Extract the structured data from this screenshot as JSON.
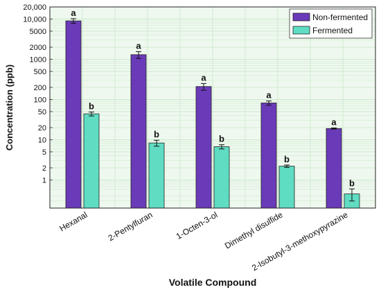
{
  "chart_data": {
    "type": "bar",
    "xlabel": "Volatile Compound",
    "ylabel": "Concentration (ppb)",
    "yscale": "log",
    "ylim": [
      0.2,
      20000
    ],
    "y_ticks": [
      {
        "value": 1,
        "label": "1"
      },
      {
        "value": 2,
        "label": "2"
      },
      {
        "value": 5,
        "label": "5"
      },
      {
        "value": 10,
        "label": "10"
      },
      {
        "value": 20,
        "label": "20"
      },
      {
        "value": 50,
        "label": "50"
      },
      {
        "value": 100,
        "label": "100"
      },
      {
        "value": 200,
        "label": "200"
      },
      {
        "value": 500,
        "label": "500"
      },
      {
        "value": 1000,
        "label": "1000"
      },
      {
        "value": 2000,
        "label": "2000"
      },
      {
        "value": 5000,
        "label": "5000"
      },
      {
        "value": 10000,
        "label": "10,000"
      },
      {
        "value": 20000,
        "label": "20,000"
      }
    ],
    "grid": true,
    "legend_position": "top-right",
    "categories": [
      "Hexanal",
      "2-Pentylfuran",
      "1-Octen-3-ol",
      "Dimethyl disulfide",
      "2-Isobutyl-3-methoxypyrazine"
    ],
    "series": [
      {
        "name": "Non-fermented",
        "color": "#6a3bb8",
        "values": [
          9000,
          1300,
          210,
          82,
          19
        ],
        "error": [
          1200,
          250,
          40,
          10,
          0.6
        ],
        "letters": [
          "a",
          "a",
          "a",
          "a",
          "a"
        ]
      },
      {
        "name": "Fermented",
        "color": "#5fdcc2",
        "values": [
          44,
          8.3,
          6.7,
          2.2,
          0.45
        ],
        "error": [
          5,
          1.4,
          0.8,
          0.15,
          0.15
        ],
        "letters": [
          "b",
          "b",
          "b",
          "b",
          "b"
        ]
      }
    ],
    "colors": {
      "plot_background": "#eef8ee",
      "grid": "#c9e6c9"
    }
  }
}
